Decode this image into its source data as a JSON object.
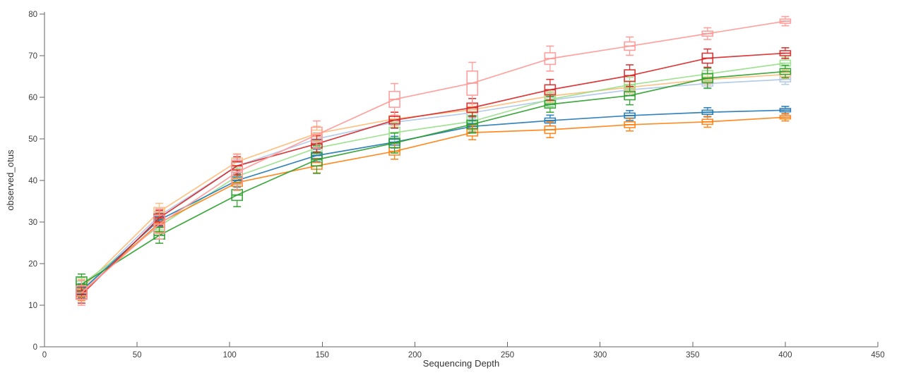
{
  "chart_data": {
    "type": "line",
    "subtype": "rarefaction-curves-with-boxplots",
    "title": "",
    "xlabel": "Sequencing Depth",
    "ylabel": "observed_otus",
    "xlim": [
      0,
      450
    ],
    "ylim": [
      0,
      80
    ],
    "x_ticks": [
      0,
      50,
      100,
      150,
      200,
      250,
      300,
      350,
      400,
      450
    ],
    "y_ticks": [
      0,
      10,
      20,
      30,
      40,
      50,
      60,
      70,
      80
    ],
    "grid": false,
    "legend": "none",
    "axis_color": "#666666",
    "tick_color": "#666666",
    "label_color": "#3c3c3c",
    "x": [
      20,
      62,
      104,
      147,
      189,
      231,
      273,
      316,
      358,
      400
    ],
    "series": [
      {
        "name": "light-blue",
        "color": "#aec7e8",
        "median": [
          13.5,
          31.5,
          43.5,
          50.0,
          54.0,
          56.3,
          59.3,
          61.8,
          63.3,
          64.3
        ],
        "box_half": [
          0.9,
          0.8,
          0.8,
          0.7,
          0.7,
          0.7,
          0.7,
          0.6,
          0.6,
          0.6
        ],
        "whisker_half": [
          1.8,
          1.7,
          1.6,
          1.5,
          1.5,
          1.4,
          1.4,
          1.3,
          1.2,
          1.2
        ]
      },
      {
        "name": "light-orange",
        "color": "#ffbb78",
        "median": [
          14.0,
          32.5,
          44.5,
          51.3,
          54.8,
          57.0,
          60.3,
          62.4,
          64.3,
          65.5
        ],
        "box_half": [
          1.1,
          1.0,
          0.9,
          0.8,
          0.8,
          0.8,
          0.7,
          0.7,
          0.6,
          0.5
        ],
        "whisker_half": [
          2.2,
          2.0,
          1.9,
          1.7,
          1.6,
          1.6,
          1.5,
          1.4,
          1.2,
          1.0
        ]
      },
      {
        "name": "light-green",
        "color": "#98df8a",
        "median": [
          15.0,
          29.0,
          41.0,
          47.8,
          51.5,
          54.2,
          59.5,
          63.0,
          65.6,
          68.2
        ],
        "box_half": [
          0.8,
          0.9,
          1.0,
          0.8,
          1.3,
          1.2,
          0.9,
          0.9,
          0.8,
          0.7
        ],
        "whisker_half": [
          1.6,
          1.8,
          2.0,
          1.7,
          2.4,
          2.3,
          1.8,
          1.8,
          1.6,
          1.4
        ]
      },
      {
        "name": "blue",
        "color": "#1f77b4",
        "median": [
          13.5,
          30.5,
          40.0,
          46.0,
          49.2,
          53.0,
          54.4,
          55.6,
          56.4,
          56.9
        ],
        "box_half": [
          0.8,
          0.8,
          0.8,
          0.7,
          0.7,
          0.7,
          0.6,
          0.6,
          0.5,
          0.4
        ],
        "whisker_half": [
          1.6,
          1.6,
          1.6,
          1.5,
          1.4,
          1.4,
          1.3,
          1.2,
          1.1,
          0.9
        ]
      },
      {
        "name": "orange",
        "color": "#ff7f0e",
        "median": [
          13.0,
          29.8,
          39.5,
          43.5,
          47.0,
          51.5,
          52.2,
          53.4,
          54.1,
          55.2
        ],
        "box_half": [
          0.9,
          1.1,
          0.9,
          0.8,
          0.9,
          0.8,
          0.9,
          0.7,
          0.6,
          0.4
        ],
        "whisker_half": [
          1.9,
          2.2,
          1.9,
          1.7,
          1.9,
          1.7,
          1.9,
          1.5,
          1.3,
          0.9
        ]
      },
      {
        "name": "green",
        "color": "#2ca02c",
        "median": [
          15.0,
          26.8,
          36.5,
          45.0,
          49.0,
          53.5,
          58.3,
          60.4,
          64.6,
          66.2
        ],
        "box_half": [
          1.8,
          0.9,
          1.3,
          1.5,
          1.1,
          1.0,
          0.9,
          1.0,
          1.1,
          0.7
        ],
        "whisker_half": [
          2.5,
          1.9,
          2.8,
          3.3,
          2.4,
          2.1,
          1.9,
          2.2,
          2.4,
          1.5
        ]
      },
      {
        "name": "red",
        "color": "#d62728",
        "median": [
          12.5,
          31.0,
          43.5,
          48.8,
          54.5,
          57.5,
          61.8,
          65.2,
          69.4,
          70.6
        ],
        "box_half": [
          1.0,
          0.9,
          1.0,
          1.0,
          0.9,
          1.1,
          1.2,
          1.4,
          1.2,
          0.6
        ],
        "whisker_half": [
          2.0,
          1.8,
          2.2,
          2.0,
          1.9,
          2.2,
          2.5,
          2.6,
          2.2,
          1.3
        ]
      },
      {
        "name": "light-red",
        "color": "#ff9896",
        "median": [
          13.0,
          29.5,
          42.0,
          51.0,
          59.5,
          63.4,
          69.3,
          72.3,
          75.3,
          78.3
        ],
        "box_half": [
          1.6,
          2.2,
          2.8,
          1.8,
          1.9,
          2.9,
          1.4,
          1.0,
          0.6,
          0.5
        ],
        "whisker_half": [
          3.0,
          3.6,
          4.3,
          3.3,
          3.8,
          5.0,
          3.0,
          2.2,
          1.4,
          1.1
        ]
      }
    ]
  }
}
